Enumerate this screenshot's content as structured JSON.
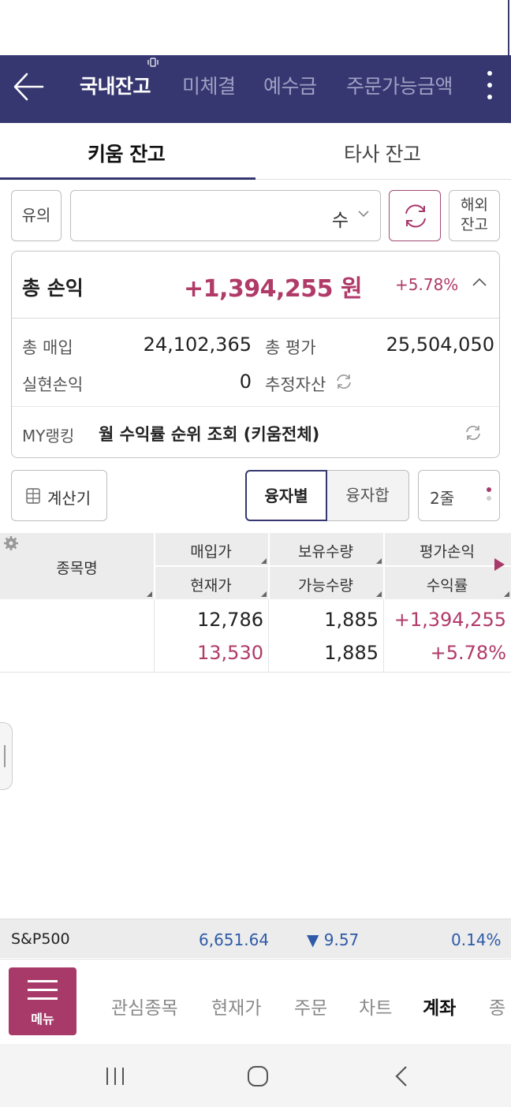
{
  "header": {
    "tabs": [
      {
        "label": "국내잔고",
        "active": true
      },
      {
        "label": "미체결",
        "active": false
      },
      {
        "label": "예수금",
        "active": false
      },
      {
        "label": "주문가능금액",
        "active": false
      }
    ]
  },
  "subtabs": [
    {
      "label": "키움 잔고",
      "active": true
    },
    {
      "label": "타사 잔고",
      "active": false
    }
  ],
  "filters": {
    "notice_label": "유의",
    "account_select_value": "수",
    "overseas_label_line1": "해외",
    "overseas_label_line2": "잔고"
  },
  "summary": {
    "title": "총 손익",
    "total_pnl": "+1,394,255 원",
    "total_pnl_rate": "+5.78%",
    "purchase_label": "총 매입",
    "purchase_value": "24,102,365",
    "evaluation_label": "총 평가",
    "evaluation_value": "25,504,050",
    "realized_label": "실현손익",
    "realized_value": "0",
    "estimated_label": "추정자산",
    "ranking_label": "MY랭킹",
    "ranking_text": "월 수익률 순위 조회 (키움전체)"
  },
  "controls": {
    "calculator_label": "계산기",
    "segment_a": "융자별",
    "segment_b": "융자합",
    "lines_label": "2줄"
  },
  "table": {
    "headers": {
      "name": "종목명",
      "purchase_price": "매입가",
      "holding_qty": "보유수량",
      "eval_pnl": "평가손익",
      "current_price": "현재가",
      "available_qty": "가능수량",
      "return_rate": "수익률"
    },
    "rows": [
      {
        "purchase_price": "12,786",
        "holding_qty": "1,885",
        "eval_pnl": "+1,394,255",
        "current_price": "13,530",
        "available_qty": "1,885",
        "return_rate": "+5.78%"
      }
    ]
  },
  "ticker": {
    "name": "S&P500",
    "value": "6,651.64",
    "change": "▼ 9.57",
    "change_pct": "0.14%"
  },
  "bottom_nav": {
    "menu_label": "메뉴",
    "items": [
      {
        "label": "관심종목",
        "active": false
      },
      {
        "label": "현재가",
        "active": false
      },
      {
        "label": "주문",
        "active": false
      },
      {
        "label": "차트",
        "active": false
      },
      {
        "label": "계좌",
        "active": true
      },
      {
        "label": "종",
        "active": false
      }
    ]
  },
  "colors": {
    "header_bg": "#363770",
    "accent_red": "#b03a68",
    "accent_blue": "#2e5aa8",
    "menu_bg": "#a83a6a"
  },
  "icons": [
    "back-arrow-icon",
    "vibrate-icon",
    "more-vert-icon",
    "chevron-down-icon",
    "refresh-icon",
    "chevron-up-icon",
    "sync-icon",
    "calculator-icon",
    "gear-icon",
    "triangle-right-icon",
    "hamburger-icon",
    "recent-apps-icon",
    "home-icon",
    "back-icon"
  ]
}
